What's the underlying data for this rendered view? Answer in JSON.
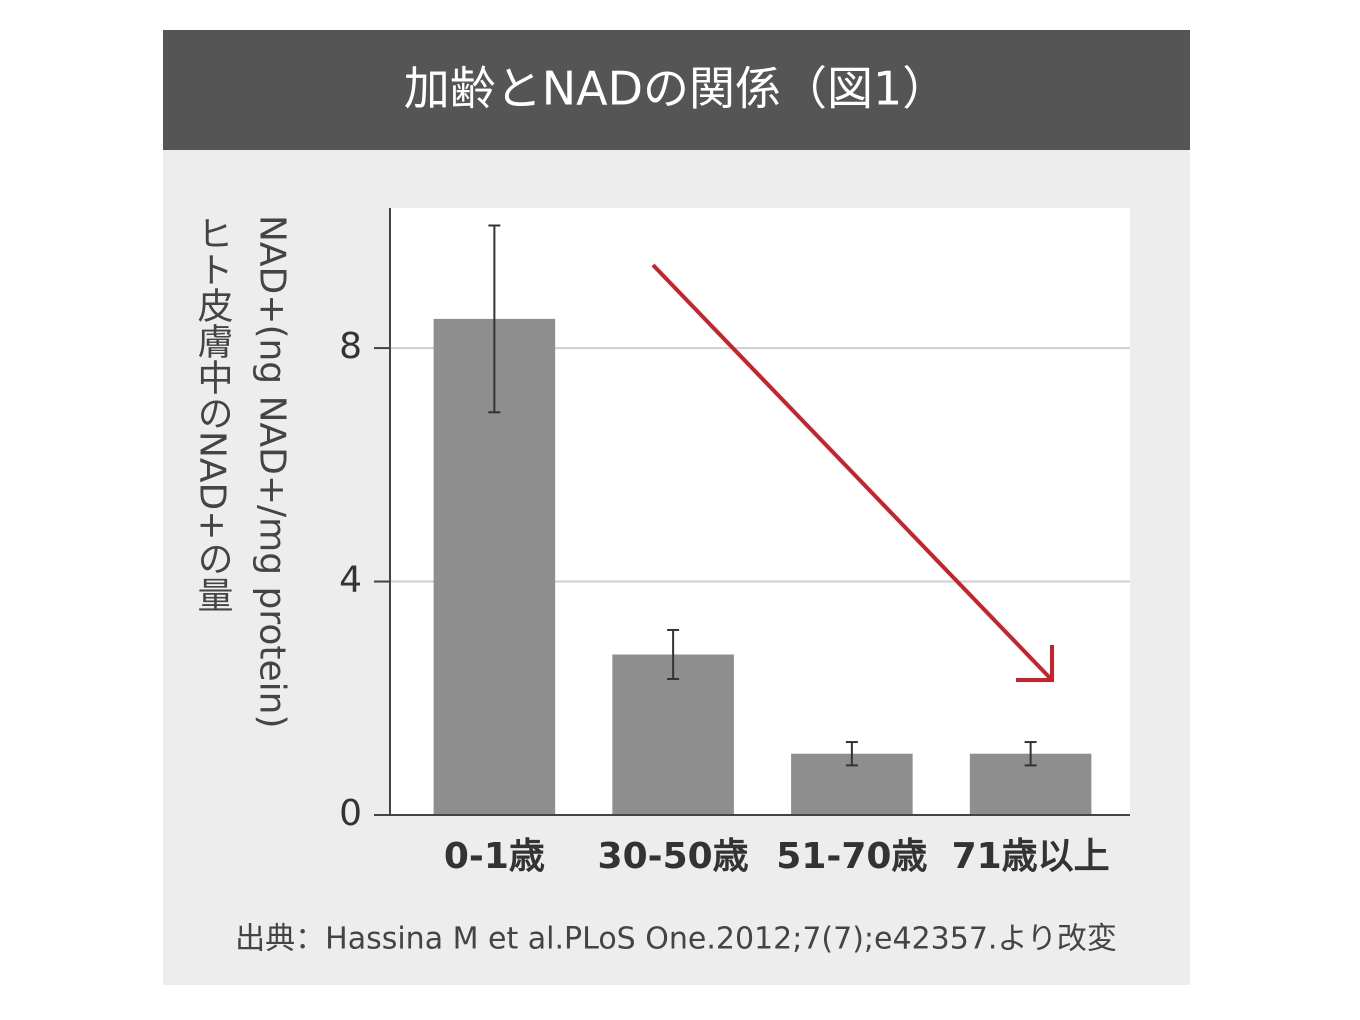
{
  "chart_data": {
    "type": "bar",
    "title": "加齢とNADの関係（図1）",
    "ylabel": [
      "ヒト皮膚中のNAD+の量",
      "NAD+(ng NAD+/mg protein)"
    ],
    "source": "出典：Hassina M et al.PLoS One.2012;7(7);e42357.より改変",
    "categories": [
      "0-1歳",
      "30-50歳",
      "51-70歳",
      "71歳以上"
    ],
    "values": [
      8.5,
      2.75,
      1.05,
      1.05
    ],
    "errors": [
      1.6,
      0.42,
      0.2,
      0.2
    ],
    "color": "#8e8e8e",
    "ylim": [
      0,
      10.4
    ],
    "yticks": [
      0,
      4,
      8
    ],
    "grid": true
  }
}
